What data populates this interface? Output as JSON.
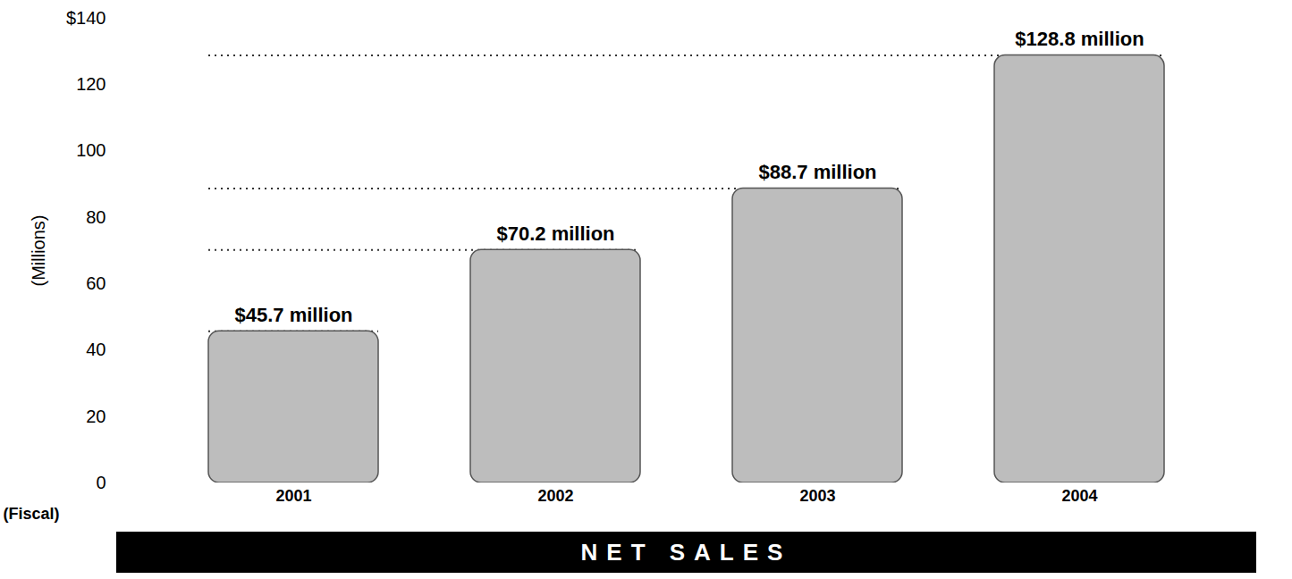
{
  "chart_data": {
    "type": "bar",
    "title": "NET SALES",
    "categories": [
      "2001",
      "2002",
      "2003",
      "2004"
    ],
    "values": [
      45.7,
      70.2,
      88.7,
      128.8
    ],
    "value_labels": [
      "$45.7 million",
      "$70.2 million",
      "$88.7 million",
      "$128.8 million"
    ],
    "color": "#bdbdbd",
    "x_label": "(Fiscal)",
    "y_label": "(Millions)",
    "ylim": [
      0,
      140
    ],
    "yticks": [
      0,
      20,
      40,
      60,
      80,
      100,
      120,
      {
        "value": 140,
        "label": "$140"
      }
    ],
    "grid": false,
    "data_labels": true
  }
}
